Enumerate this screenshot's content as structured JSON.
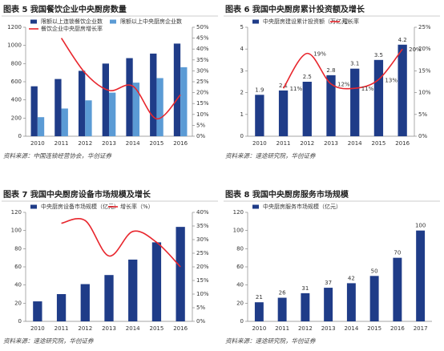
{
  "chart_data": [
    {
      "type": "bar_line",
      "title": "图表 5 我国餐饮企业中央厨房数量",
      "source": "资料来源：中国连锁经营协会，华创证券",
      "categories": [
        "2010",
        "2011",
        "2012",
        "2013",
        "2014",
        "2015",
        "2016"
      ],
      "ylim": [
        0,
        1200
      ],
      "yticks": [
        0,
        200,
        400,
        600,
        800,
        1000,
        1200
      ],
      "y2lim": [
        0,
        50
      ],
      "y2ticks": [
        {
          "value": 0,
          "label": "0%"
        },
        {
          "value": 5,
          "label": "5%"
        },
        {
          "value": 10,
          "label": "10%"
        },
        {
          "value": 15,
          "label": "15%"
        },
        {
          "value": 20,
          "label": "20%"
        },
        {
          "value": 25,
          "label": "25%"
        },
        {
          "value": 30,
          "label": "30%"
        },
        {
          "value": 35,
          "label": "35%"
        },
        {
          "value": 40,
          "label": "40%"
        },
        {
          "value": 45,
          "label": "45%"
        },
        {
          "value": 50,
          "label": "50%"
        }
      ],
      "series": [
        {
          "name": "限额以上连锁餐饮企业数",
          "type": "bar",
          "color": "#1f3c88",
          "values": [
            550,
            630,
            720,
            800,
            860,
            910,
            1020
          ]
        },
        {
          "name": "限额以上中央厨房企业数",
          "type": "bar",
          "color": "#5b9bd5",
          "values": [
            210,
            305,
            395,
            480,
            590,
            640,
            760
          ]
        },
        {
          "name": "餐饮企业中央厨房增长率",
          "type": "line",
          "axis": "y2",
          "color": "#e8262d",
          "values": [
            null,
            45,
            29,
            21,
            23,
            8,
            19
          ]
        }
      ]
    },
    {
      "type": "bar_line",
      "title": "图表 6 我国中央厨房累计投资额及增长",
      "source": "资料来源：速途研究院，华创证券",
      "categories": [
        "2010",
        "2011",
        "2012",
        "2013",
        "2014",
        "2015",
        "2016"
      ],
      "ylim": [
        0,
        5
      ],
      "yticks": [
        0,
        1,
        2,
        3,
        4,
        5
      ],
      "y2lim": [
        0,
        25
      ],
      "y2ticks": [
        {
          "value": 0,
          "label": "0%"
        },
        {
          "value": 5,
          "label": "5%"
        },
        {
          "value": 10,
          "label": "10%"
        },
        {
          "value": 15,
          "label": "15%"
        },
        {
          "value": 20,
          "label": "20%"
        },
        {
          "value": 25,
          "label": "25%"
        }
      ],
      "bar_labels": true,
      "series": [
        {
          "name": "中央厨房建设累计投资额（万亿元）",
          "type": "bar",
          "color": "#1f3c88",
          "values": [
            1.9,
            2.1,
            2.5,
            2.8,
            3.1,
            3.5,
            4.2
          ]
        },
        {
          "name": "增长率",
          "type": "line",
          "axis": "y2",
          "color": "#e8262d",
          "values": [
            null,
            11,
            19,
            12,
            11,
            13,
            20
          ],
          "value_labels": [
            null,
            "11%",
            "19%",
            "12%",
            "11%",
            "13%",
            "20%"
          ]
        }
      ]
    },
    {
      "type": "bar_line",
      "title": "图表 7 我国中央厨房设备市场规模及增长",
      "source": "资料来源：速途研究院，华创证券",
      "categories": [
        "2010",
        "2011",
        "2012",
        "2013",
        "2014",
        "2015",
        "2016"
      ],
      "ylim": [
        0,
        120
      ],
      "yticks": [
        0,
        20,
        40,
        60,
        80,
        100,
        120
      ],
      "y2lim": [
        0,
        40
      ],
      "y2ticks": [
        {
          "value": 0,
          "label": "0%"
        },
        {
          "value": 5,
          "label": "5%"
        },
        {
          "value": 10,
          "label": "10%"
        },
        {
          "value": 15,
          "label": "15%"
        },
        {
          "value": 20,
          "label": "20%"
        },
        {
          "value": 25,
          "label": "25%"
        },
        {
          "value": 30,
          "label": "30%"
        },
        {
          "value": 35,
          "label": "35%"
        },
        {
          "value": 40,
          "label": "40%"
        }
      ],
      "series": [
        {
          "name": "中央厨房设备市场规模（亿元）",
          "type": "bar",
          "color": "#1f3c88",
          "values": [
            22,
            30,
            41,
            51,
            68,
            87,
            104
          ]
        },
        {
          "name": "增长率（%）",
          "type": "line",
          "axis": "y2",
          "color": "#e8262d",
          "values": [
            null,
            36,
            37,
            24,
            33,
            29,
            20
          ]
        }
      ]
    },
    {
      "type": "bar_line",
      "title": "图表 8 我国中央厨房服务市场规模",
      "source": "资料来源：速途研究院，华创证券",
      "categories": [
        "2010",
        "2011",
        "2012",
        "2013",
        "2014",
        "2015",
        "2016",
        "2017"
      ],
      "ylim": [
        0,
        120
      ],
      "yticks": [
        0,
        20,
        40,
        60,
        80,
        100,
        120
      ],
      "bar_labels": true,
      "series": [
        {
          "name": "中央厨房服务市场规模（亿元）",
          "type": "bar",
          "color": "#1f3c88",
          "values": [
            21,
            26,
            31,
            37,
            42,
            50,
            70,
            100
          ]
        }
      ]
    }
  ]
}
